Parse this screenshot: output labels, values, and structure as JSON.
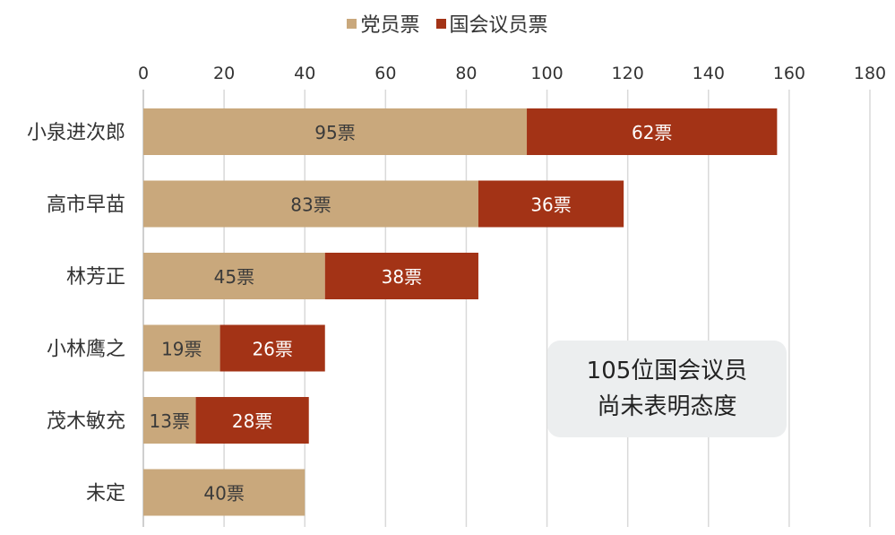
{
  "legend": {
    "party": "党员票",
    "diet": "国会议员票"
  },
  "colors": {
    "party": "#c9a87c",
    "diet": "#a33316",
    "grid": "#d9d9d9",
    "text": "#333333",
    "label_light": "#ffffff",
    "label_dark": "#3a3a3a"
  },
  "note": {
    "line1": "105位国会议员",
    "line2": "尚未表明态度"
  },
  "chart_data": {
    "type": "bar",
    "orientation": "horizontal",
    "stacked": true,
    "categories": [
      "小泉进次郎",
      "高市早苗",
      "林芳正",
      "小林鹰之",
      "茂木敏充",
      "未定"
    ],
    "series": [
      {
        "name": "党员票",
        "values": [
          95,
          83,
          45,
          19,
          13,
          40
        ]
      },
      {
        "name": "国会议员票",
        "values": [
          62,
          36,
          38,
          26,
          28,
          0
        ]
      }
    ],
    "value_labels": [
      [
        "95票",
        "83票",
        "45票",
        "19票",
        "13票",
        "40票"
      ],
      [
        "62票",
        "36票",
        "38票",
        "26票",
        "28票",
        ""
      ]
    ],
    "ticks": [
      "0",
      "20",
      "40",
      "60",
      "80",
      "100",
      "120",
      "140",
      "160",
      "180"
    ],
    "xlim": [
      0,
      180
    ],
    "xaxis_position": "top",
    "grid": true,
    "legend_position": "top"
  }
}
